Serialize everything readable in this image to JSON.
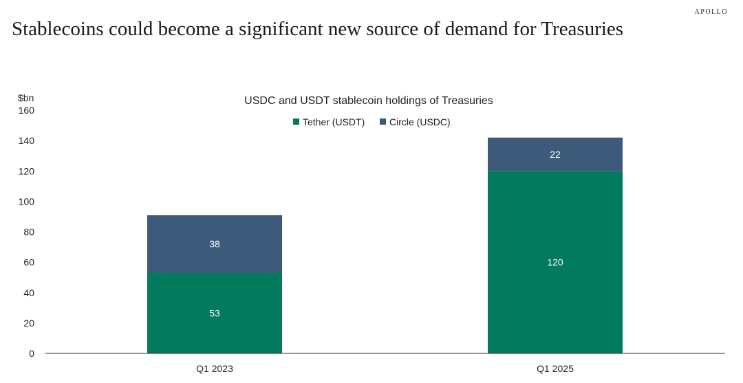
{
  "brand": "APOLLO",
  "headline": "Stablecoins could become a significant new source of  demand for Treasuries",
  "colors": {
    "tether": "#017a5e",
    "circle": "#3d5a7a"
  },
  "chart_data": {
    "type": "bar",
    "stacked": true,
    "title": "USDC and USDT stablecoin holdings of Treasuries",
    "ylabel": "$bn",
    "xlabel": "",
    "categories": [
      "Q1 2023",
      "Q1 2025"
    ],
    "series": [
      {
        "name": "Tether (USDT)",
        "values": [
          53,
          120
        ]
      },
      {
        "name": "Circle (USDC)",
        "values": [
          38,
          22
        ]
      }
    ],
    "ylim": [
      0,
      160
    ],
    "yticks": [
      0,
      20,
      40,
      60,
      80,
      100,
      120,
      140,
      160
    ],
    "grid": false,
    "legend": "top-center"
  }
}
